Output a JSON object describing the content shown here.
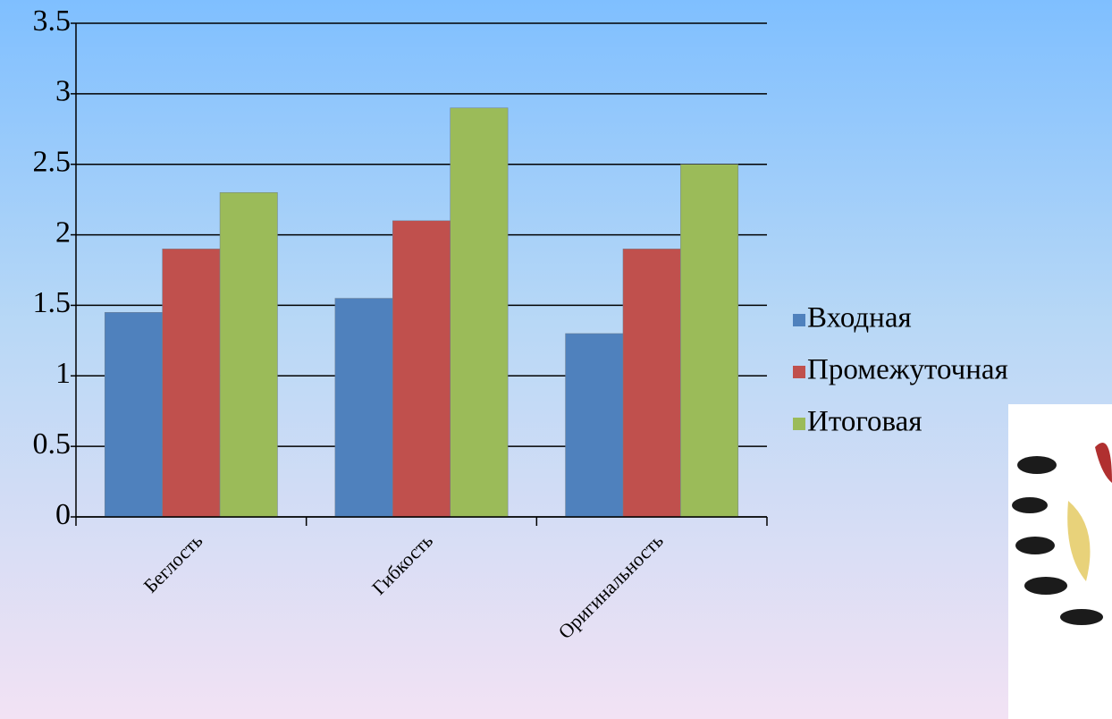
{
  "chart_data": {
    "type": "bar",
    "categories": [
      "Беглость",
      "Гибкость",
      "Оригинальность"
    ],
    "series": [
      {
        "name": "Входная",
        "color": "#4f81bd",
        "values": [
          1.45,
          1.55,
          1.3
        ]
      },
      {
        "name": "Промежуточная",
        "color": "#c0504d",
        "values": [
          1.9,
          2.1,
          1.9
        ]
      },
      {
        "name": "Итоговая",
        "color": "#9bbb59",
        "values": [
          2.3,
          2.9,
          2.5
        ]
      }
    ],
    "ylim": [
      0,
      3.5
    ],
    "yticks": [
      0,
      0.5,
      1,
      1.5,
      2,
      2.5,
      3,
      3.5
    ],
    "grid": true,
    "legend": "right"
  }
}
